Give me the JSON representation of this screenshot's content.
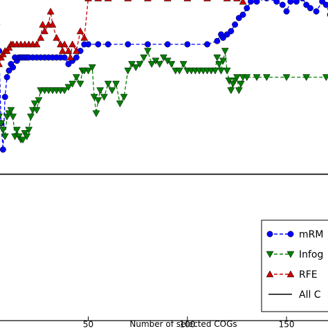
{
  "chart_data": {
    "type": "line",
    "title": "",
    "xlabel": "Number of selected COGs",
    "ylabel": "",
    "xlim": [
      -5,
      180
    ],
    "ylim": [
      0.0,
      1.0
    ],
    "x_ticks": [
      50,
      100,
      150
    ],
    "y_ticks": [],
    "grid": false,
    "legend_placement": "lower-right",
    "series": [
      {
        "name": "mRMR",
        "color": "#0000ff",
        "marker": "circle",
        "points": [
          [
            1,
            0.72
          ],
          [
            2,
            0.88
          ],
          [
            3,
            0.93
          ],
          [
            4,
            0.9
          ],
          [
            5,
            0.82
          ],
          [
            6,
            0.6
          ],
          [
            7,
            0.52
          ],
          [
            8,
            0.68
          ],
          [
            9,
            0.74
          ],
          [
            10,
            0.76
          ],
          [
            11,
            0.78
          ],
          [
            12,
            0.77
          ],
          [
            13,
            0.8
          ],
          [
            14,
            0.79
          ],
          [
            15,
            0.8
          ],
          [
            16,
            0.8
          ],
          [
            17,
            0.8
          ],
          [
            18,
            0.8
          ],
          [
            19,
            0.8
          ],
          [
            20,
            0.8
          ],
          [
            22,
            0.8
          ],
          [
            24,
            0.8
          ],
          [
            26,
            0.8
          ],
          [
            28,
            0.8
          ],
          [
            30,
            0.8
          ],
          [
            32,
            0.8
          ],
          [
            34,
            0.8
          ],
          [
            36,
            0.8
          ],
          [
            38,
            0.8
          ],
          [
            40,
            0.78
          ],
          [
            42,
            0.79
          ],
          [
            44,
            0.8
          ],
          [
            46,
            0.82
          ],
          [
            48,
            0.84
          ],
          [
            50,
            0.84
          ],
          [
            55,
            0.84
          ],
          [
            60,
            0.84
          ],
          [
            70,
            0.84
          ],
          [
            80,
            0.84
          ],
          [
            90,
            0.84
          ],
          [
            100,
            0.84
          ],
          [
            110,
            0.84
          ],
          [
            115,
            0.85
          ],
          [
            117,
            0.87
          ],
          [
            118,
            0.86
          ],
          [
            120,
            0.87
          ],
          [
            122,
            0.88
          ],
          [
            124,
            0.9
          ],
          [
            126,
            0.92
          ],
          [
            128,
            0.93
          ],
          [
            130,
            0.95
          ],
          [
            132,
            0.97
          ],
          [
            135,
            0.97
          ],
          [
            140,
            0.98
          ],
          [
            145,
            0.97
          ],
          [
            148,
            0.96
          ],
          [
            150,
            0.94
          ],
          [
            152,
            0.97
          ],
          [
            155,
            0.97
          ],
          [
            158,
            0.98
          ],
          [
            160,
            0.96
          ],
          [
            162,
            0.95
          ],
          [
            165,
            0.94
          ],
          [
            168,
            0.97
          ],
          [
            170,
            0.96
          ],
          [
            172,
            0.93
          ],
          [
            174,
            0.95
          ],
          [
            176,
            0.94
          ],
          [
            178,
            0.96
          ]
        ]
      },
      {
        "name": "Infogain",
        "color": "#008000",
        "marker": "triangle-down",
        "points": [
          [
            1,
            0.62
          ],
          [
            2,
            0.6
          ],
          [
            3,
            0.58
          ],
          [
            4,
            0.63
          ],
          [
            5,
            0.62
          ],
          [
            6,
            0.6
          ],
          [
            7,
            0.58
          ],
          [
            8,
            0.56
          ],
          [
            9,
            0.62
          ],
          [
            10,
            0.63
          ],
          [
            11,
            0.64
          ],
          [
            12,
            0.62
          ],
          [
            13,
            0.56
          ],
          [
            14,
            0.58
          ],
          [
            15,
            0.56
          ],
          [
            16,
            0.55
          ],
          [
            17,
            0.55
          ],
          [
            18,
            0.57
          ],
          [
            19,
            0.56
          ],
          [
            20,
            0.58
          ],
          [
            21,
            0.62
          ],
          [
            22,
            0.64
          ],
          [
            23,
            0.66
          ],
          [
            24,
            0.64
          ],
          [
            25,
            0.67
          ],
          [
            26,
            0.7
          ],
          [
            28,
            0.7
          ],
          [
            30,
            0.7
          ],
          [
            32,
            0.7
          ],
          [
            34,
            0.7
          ],
          [
            36,
            0.7
          ],
          [
            38,
            0.7
          ],
          [
            40,
            0.71
          ],
          [
            42,
            0.72
          ],
          [
            44,
            0.74
          ],
          [
            46,
            0.72
          ],
          [
            47,
            0.76
          ],
          [
            48,
            0.76
          ],
          [
            50,
            0.76
          ],
          [
            52,
            0.77
          ],
          [
            53,
            0.68
          ],
          [
            54,
            0.63
          ],
          [
            55,
            0.67
          ],
          [
            56,
            0.7
          ],
          [
            58,
            0.68
          ],
          [
            60,
            0.72
          ],
          [
            62,
            0.7
          ],
          [
            64,
            0.72
          ],
          [
            66,
            0.66
          ],
          [
            68,
            0.68
          ],
          [
            70,
            0.76
          ],
          [
            72,
            0.78
          ],
          [
            74,
            0.77
          ],
          [
            76,
            0.78
          ],
          [
            78,
            0.8
          ],
          [
            80,
            0.82
          ],
          [
            82,
            0.78
          ],
          [
            84,
            0.79
          ],
          [
            86,
            0.78
          ],
          [
            88,
            0.8
          ],
          [
            90,
            0.79
          ],
          [
            92,
            0.78
          ],
          [
            94,
            0.76
          ],
          [
            96,
            0.76
          ],
          [
            98,
            0.78
          ],
          [
            100,
            0.76
          ],
          [
            102,
            0.76
          ],
          [
            104,
            0.76
          ],
          [
            106,
            0.76
          ],
          [
            108,
            0.76
          ],
          [
            110,
            0.76
          ],
          [
            112,
            0.76
          ],
          [
            114,
            0.76
          ],
          [
            115,
            0.8
          ],
          [
            116,
            0.78
          ],
          [
            117,
            0.76
          ],
          [
            118,
            0.79
          ],
          [
            119,
            0.82
          ],
          [
            120,
            0.76
          ],
          [
            121,
            0.73
          ],
          [
            122,
            0.7
          ],
          [
            123,
            0.72
          ],
          [
            124,
            0.73
          ],
          [
            125,
            0.74
          ],
          [
            126,
            0.7
          ],
          [
            127,
            0.72
          ],
          [
            128,
            0.74
          ],
          [
            130,
            0.74
          ],
          [
            135,
            0.74
          ],
          [
            140,
            0.74
          ],
          [
            150,
            0.74
          ],
          [
            160,
            0.74
          ],
          [
            170,
            0.74
          ],
          [
            178,
            0.74
          ]
        ]
      },
      {
        "name": "RFE",
        "color": "#cc0000",
        "marker": "triangle-up",
        "points": [
          [
            1,
            0.6
          ],
          [
            2,
            0.62
          ],
          [
            3,
            0.66
          ],
          [
            4,
            0.72
          ],
          [
            5,
            0.78
          ],
          [
            6,
            0.8
          ],
          [
            7,
            0.81
          ],
          [
            8,
            0.82
          ],
          [
            9,
            0.82
          ],
          [
            10,
            0.83
          ],
          [
            11,
            0.84
          ],
          [
            12,
            0.84
          ],
          [
            14,
            0.84
          ],
          [
            16,
            0.84
          ],
          [
            18,
            0.84
          ],
          [
            20,
            0.84
          ],
          [
            22,
            0.84
          ],
          [
            24,
            0.84
          ],
          [
            26,
            0.86
          ],
          [
            27,
            0.9
          ],
          [
            28,
            0.88
          ],
          [
            30,
            0.9
          ],
          [
            31,
            0.94
          ],
          [
            32,
            0.9
          ],
          [
            34,
            0.86
          ],
          [
            36,
            0.84
          ],
          [
            37,
            0.82
          ],
          [
            38,
            0.84
          ],
          [
            40,
            0.82
          ],
          [
            41,
            0.8
          ],
          [
            42,
            0.84
          ],
          [
            44,
            0.82
          ],
          [
            46,
            0.88
          ],
          [
            48,
            0.86
          ],
          [
            50,
            0.98
          ],
          [
            55,
            0.98
          ],
          [
            60,
            0.98
          ],
          [
            70,
            0.98
          ],
          [
            80,
            0.98
          ],
          [
            90,
            0.98
          ],
          [
            100,
            0.98
          ],
          [
            110,
            0.98
          ],
          [
            120,
            0.98
          ],
          [
            125,
            0.98
          ],
          [
            126,
            0.99
          ],
          [
            128,
            0.97
          ],
          [
            130,
            0.99
          ],
          [
            135,
            0.99
          ],
          [
            140,
            0.99
          ],
          [
            150,
            0.99
          ],
          [
            160,
            0.99
          ],
          [
            170,
            0.99
          ],
          [
            178,
            0.99
          ]
        ]
      },
      {
        "name": "All COGs",
        "color": "#000000",
        "marker": "none",
        "points": [
          [
            -5,
            0.445
          ],
          [
            180,
            0.445
          ]
        ]
      }
    ]
  },
  "legend": {
    "entries": [
      {
        "label": "mRM",
        "series": "mRMR"
      },
      {
        "label": "Infog",
        "series": "Infogain"
      },
      {
        "label": "RFE",
        "series": "RFE"
      },
      {
        "label": "All C",
        "series": "All COGs"
      }
    ]
  }
}
